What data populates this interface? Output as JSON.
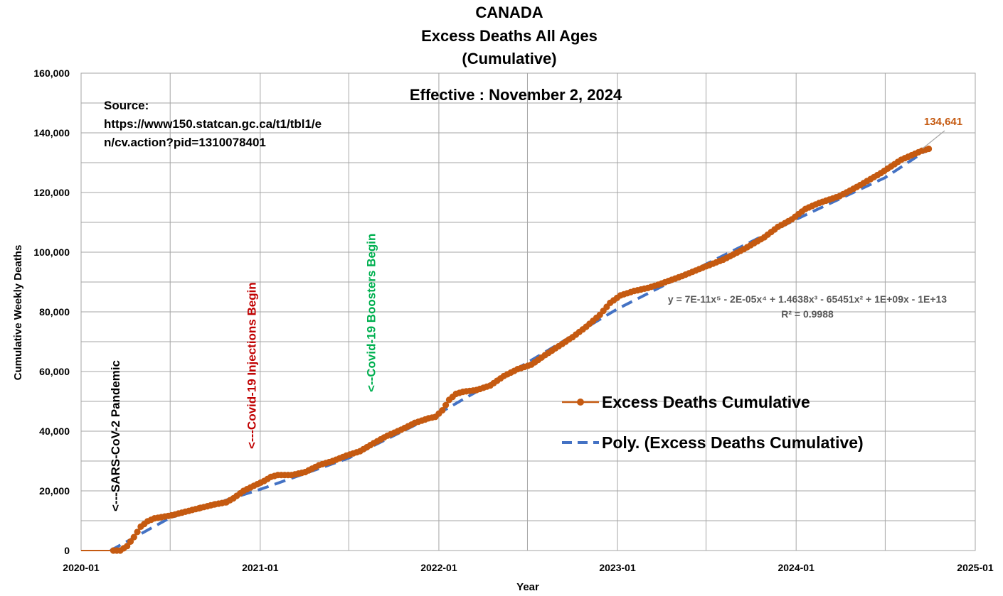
{
  "colors": {
    "series": "#C55A11",
    "trend": "#4472C4",
    "grid": "#A6A6A6",
    "ann_pandemic": "#000000",
    "ann_injections": "#C00000",
    "ann_boosters": "#00B050",
    "equation": "#595959"
  },
  "chart_data": {
    "type": "line",
    "title_lines": [
      "CANADA",
      "Excess Deaths All Ages",
      "(Cumulative)"
    ],
    "subtitle": "Effective : November 2, 2024",
    "xlabel": "Year",
    "ylabel": "Cumulative Weekly Deaths",
    "x_ticks": [
      "2020-01",
      "2021-01",
      "2022-01",
      "2023-01",
      "2024-01",
      "2025-01"
    ],
    "y_ticks": [
      "0",
      "20,000",
      "40,000",
      "60,000",
      "80,000",
      "100,000",
      "120,000",
      "140,000",
      "160,000"
    ],
    "xlim": [
      "2020-01-01",
      "2025-01-01"
    ],
    "ylim": [
      0,
      160000
    ],
    "grid": true,
    "legend_position": "center-right",
    "source_lines": [
      "Source:",
      "https://www150.statcan.gc.ca/t1/tbl1/e",
      "n/cv.action?pid=1310078401"
    ],
    "annotations": [
      {
        "text": "<---SARS-CoV-2 Pandemic",
        "date": "2020-03-11",
        "color": "#000000"
      },
      {
        "text": "<---Covid-19 Injections Begin",
        "date": "2020-12-14",
        "color": "#C00000"
      },
      {
        "text": "<--Covid-19 Boosters Begin",
        "date": "2021-08-15",
        "color": "#00B050"
      }
    ],
    "end_label": "134,641",
    "trendline_equation": "y = 7E-11x⁵ - 2E-05x⁴ + 1.4638x³ - 65451x² + 1E+09x - 1E+13",
    "r_squared": "R² = 0.9988",
    "series": [
      {
        "name": "Excess Deaths Cumulative",
        "style": "line-with-markers",
        "points": [
          [
            "2020-03-07",
            0
          ],
          [
            "2020-03-21",
            0
          ],
          [
            "2020-04-04",
            1500
          ],
          [
            "2020-04-18",
            4500
          ],
          [
            "2020-05-02",
            8000
          ],
          [
            "2020-05-16",
            9800
          ],
          [
            "2020-05-30",
            10800
          ],
          [
            "2020-06-13",
            11200
          ],
          [
            "2020-07-04",
            11800
          ],
          [
            "2020-08-01",
            13000
          ],
          [
            "2020-09-01",
            14300
          ],
          [
            "2020-10-01",
            15500
          ],
          [
            "2020-10-24",
            16200
          ],
          [
            "2020-11-07",
            17500
          ],
          [
            "2020-11-28",
            20000
          ],
          [
            "2020-12-19",
            21700
          ],
          [
            "2021-01-09",
            23300
          ],
          [
            "2021-01-23",
            24700
          ],
          [
            "2021-02-06",
            25300
          ],
          [
            "2021-03-06",
            25300
          ],
          [
            "2021-04-03",
            26300
          ],
          [
            "2021-05-01",
            28600
          ],
          [
            "2021-05-29",
            30000
          ],
          [
            "2021-06-26",
            31800
          ],
          [
            "2021-07-24",
            33300
          ],
          [
            "2021-08-21",
            36000
          ],
          [
            "2021-09-18",
            38500
          ],
          [
            "2021-10-16",
            40500
          ],
          [
            "2021-11-13",
            42800
          ],
          [
            "2021-12-11",
            44300
          ],
          [
            "2021-12-25",
            44800
          ],
          [
            "2022-01-08",
            47000
          ],
          [
            "2022-01-22",
            50500
          ],
          [
            "2022-02-05",
            52500
          ],
          [
            "2022-02-19",
            53200
          ],
          [
            "2022-03-19",
            53800
          ],
          [
            "2022-04-16",
            55300
          ],
          [
            "2022-05-14",
            58500
          ],
          [
            "2022-06-11",
            60800
          ],
          [
            "2022-07-09",
            62300
          ],
          [
            "2022-08-06",
            65500
          ],
          [
            "2022-09-03",
            68500
          ],
          [
            "2022-10-01",
            71500
          ],
          [
            "2022-10-29",
            75000
          ],
          [
            "2022-11-26",
            79000
          ],
          [
            "2022-12-17",
            83000
          ],
          [
            "2023-01-07",
            85500
          ],
          [
            "2023-02-04",
            87000
          ],
          [
            "2023-03-04",
            88000
          ],
          [
            "2023-04-01",
            89500
          ],
          [
            "2023-05-13",
            92000
          ],
          [
            "2023-06-24",
            94800
          ],
          [
            "2023-08-05",
            97500
          ],
          [
            "2023-09-16",
            101000
          ],
          [
            "2023-10-28",
            105000
          ],
          [
            "2023-11-25",
            108500
          ],
          [
            "2023-12-23",
            111000
          ],
          [
            "2024-01-20",
            114500
          ],
          [
            "2024-02-17",
            116500
          ],
          [
            "2024-03-30",
            118800
          ],
          [
            "2024-05-11",
            122500
          ],
          [
            "2024-06-22",
            126500
          ],
          [
            "2024-08-03",
            131000
          ],
          [
            "2024-09-14",
            134000
          ],
          [
            "2024-09-28",
            134641
          ]
        ]
      },
      {
        "name": "Poly. (Excess Deaths Cumulative)",
        "style": "dashed-trendline",
        "points": [
          [
            "2020-03-01",
            0
          ],
          [
            "2020-07-01",
            11000
          ],
          [
            "2021-01-01",
            20500
          ],
          [
            "2021-07-01",
            31000
          ],
          [
            "2022-01-01",
            46000
          ],
          [
            "2022-07-01",
            63000
          ],
          [
            "2023-01-01",
            81000
          ],
          [
            "2023-07-01",
            96000
          ],
          [
            "2024-01-01",
            111000
          ],
          [
            "2024-07-01",
            125000
          ],
          [
            "2024-10-01",
            135000
          ]
        ]
      }
    ]
  }
}
